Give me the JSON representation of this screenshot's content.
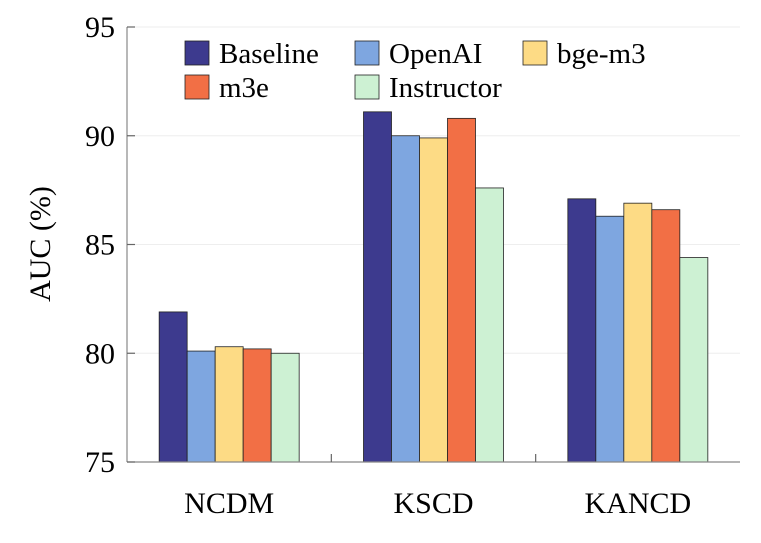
{
  "chart_data": {
    "type": "bar",
    "title": "",
    "xlabel": "",
    "ylabel": "AUC (%)",
    "ylim": [
      75,
      95
    ],
    "yticks": [
      75,
      80,
      85,
      90,
      95
    ],
    "grid": true,
    "legend_position": "top-center",
    "categories": [
      "NCDM",
      "KSCD",
      "KANCD"
    ],
    "series": [
      {
        "name": "Baseline",
        "color": "#3d3a8e",
        "values": [
          81.9,
          91.1,
          87.1
        ]
      },
      {
        "name": "OpenAI",
        "color": "#7ea6e0",
        "values": [
          80.1,
          90.0,
          86.3
        ]
      },
      {
        "name": "bge-m3",
        "color": "#fddb85",
        "values": [
          80.3,
          89.9,
          86.9
        ]
      },
      {
        "name": "m3e",
        "color": "#f26f45",
        "values": [
          80.2,
          90.8,
          86.6
        ]
      },
      {
        "name": "Instructor",
        "color": "#cdf1d3",
        "values": [
          80.0,
          87.6,
          84.4
        ]
      }
    ]
  }
}
